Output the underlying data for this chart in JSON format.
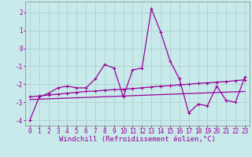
{
  "title": "",
  "xlabel": "Windchill (Refroidissement éolien,°C)",
  "background_color": "#c8eaea",
  "line_color": "#990099",
  "grid_color": "#aacccc",
  "xlim": [
    -0.5,
    23.5
  ],
  "ylim": [
    -4.3,
    2.6
  ],
  "yticks": [
    -4,
    -3,
    -2,
    -1,
    0,
    1,
    2
  ],
  "xticks": [
    0,
    1,
    2,
    3,
    4,
    5,
    6,
    7,
    8,
    9,
    10,
    11,
    12,
    13,
    14,
    15,
    16,
    17,
    18,
    19,
    20,
    21,
    22,
    23
  ],
  "series1_x": [
    0,
    1,
    2,
    3,
    4,
    5,
    6,
    7,
    8,
    9,
    10,
    11,
    12,
    13,
    14,
    15,
    16,
    17,
    18,
    19,
    20,
    21,
    22,
    23
  ],
  "series1_y": [
    -4.0,
    -2.7,
    -2.5,
    -2.2,
    -2.1,
    -2.2,
    -2.2,
    -1.7,
    -0.9,
    -1.1,
    -2.7,
    -1.2,
    -1.1,
    2.2,
    0.9,
    -0.7,
    -1.7,
    -3.6,
    -3.1,
    -3.2,
    -2.1,
    -2.9,
    -3.0,
    -1.6
  ],
  "series2_x": [
    0,
    1,
    2,
    3,
    4,
    5,
    6,
    7,
    8,
    9,
    10,
    11,
    12,
    13,
    14,
    15,
    16,
    17,
    18,
    19,
    20,
    21,
    22,
    23
  ],
  "series2_y": [
    -2.7,
    -2.65,
    -2.6,
    -2.55,
    -2.5,
    -2.45,
    -2.4,
    -2.38,
    -2.33,
    -2.3,
    -2.28,
    -2.24,
    -2.2,
    -2.15,
    -2.1,
    -2.08,
    -2.03,
    -2.0,
    -1.95,
    -1.92,
    -1.88,
    -1.85,
    -1.8,
    -1.75
  ],
  "series3_x": [
    0,
    23
  ],
  "series3_y": [
    -2.85,
    -2.4
  ],
  "marker": "+",
  "markersize": 3.5,
  "linewidth": 0.9,
  "xlabel_fontsize": 6.5,
  "tick_fontsize": 5.5
}
